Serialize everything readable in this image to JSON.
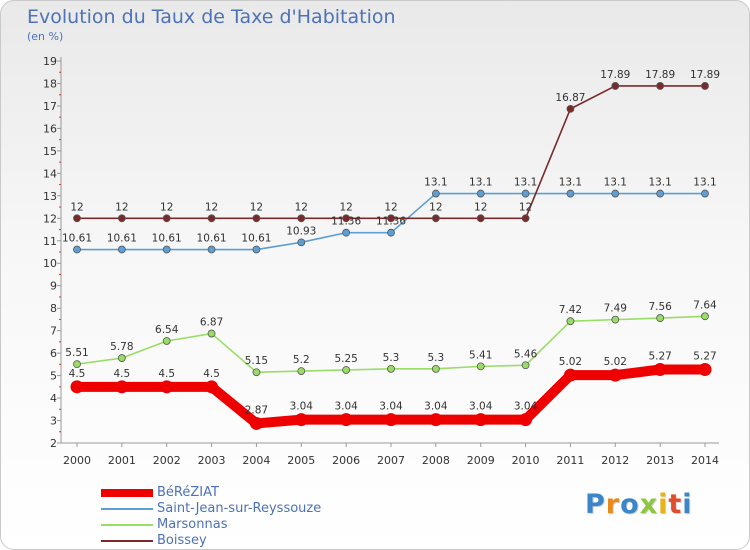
{
  "header": {
    "title": "Evolution du Taux de Taxe d'Habitation",
    "unit": "(en %)"
  },
  "logo": {
    "text": "Proxiti",
    "letter_colors": [
      "#3a86c8",
      "#e88a1a",
      "#3a86c8",
      "#8cc63f",
      "#e8b41a",
      "#e34b2a",
      "#3a86c8"
    ]
  },
  "chart_data": {
    "type": "line",
    "x": [
      2000,
      2001,
      2002,
      2003,
      2004,
      2005,
      2006,
      2007,
      2008,
      2009,
      2010,
      2011,
      2012,
      2013,
      2014
    ],
    "ylim": [
      2,
      19
    ],
    "yticks": [
      2,
      3,
      4,
      5,
      6,
      7,
      8,
      9,
      10,
      11,
      12,
      13,
      14,
      15,
      16,
      17,
      18,
      19
    ],
    "grid": false,
    "legend_position": "bottom-left",
    "series": [
      {
        "name": "BéRéZIAT",
        "color": "#ee0000",
        "values": [
          4.5,
          4.5,
          4.5,
          4.5,
          2.87,
          3.04,
          3.04,
          3.04,
          3.04,
          3.04,
          3.04,
          5.02,
          5.02,
          5.27,
          5.27
        ],
        "labels": [
          "4.5",
          "4.5",
          "4.5",
          "4.5",
          "2.87",
          "3.04",
          "3.04",
          "3.04",
          "3.04",
          "3.04",
          "3.04",
          "5.02",
          "5.02",
          "5.27",
          "5.27"
        ]
      },
      {
        "name": "Saint-Jean-sur-Reyssouze",
        "color": "#5d9fd4",
        "values": [
          10.61,
          10.61,
          10.61,
          10.61,
          10.61,
          10.93,
          11.36,
          11.36,
          13.1,
          13.1,
          13.1,
          13.1,
          13.1,
          13.1,
          13.1
        ],
        "labels": [
          "10.61",
          "10.61",
          "10.61",
          "10.61",
          "10.61",
          "10.93",
          "11.36",
          "11.36",
          "13.1",
          "13.1",
          "13.1",
          "13.1",
          "13.1",
          "13.1",
          "13.1"
        ]
      },
      {
        "name": "Marsonnas",
        "color": "#99dd66",
        "values": [
          5.51,
          5.78,
          6.54,
          6.87,
          5.15,
          5.2,
          5.25,
          5.3,
          5.3,
          5.41,
          5.46,
          7.42,
          7.49,
          7.56,
          7.64
        ],
        "labels": [
          "5.51",
          "5.78",
          "6.54",
          "6.87",
          "5.15",
          "5.2",
          "5.25",
          "5.3",
          "5.3",
          "5.41",
          "5.46",
          "7.42",
          "7.49",
          "7.56",
          "7.64"
        ]
      },
      {
        "name": "Boissey",
        "color": "#7a2a2a",
        "values": [
          12,
          12,
          12,
          12,
          12,
          12,
          12,
          12,
          12,
          12,
          12,
          16.87,
          17.89,
          17.89,
          17.89
        ],
        "labels": [
          "12",
          "12",
          "12",
          "12",
          "12",
          "12",
          "12",
          "12",
          "12",
          "12",
          "12",
          "16.87",
          "17.89",
          "17.89",
          "17.89"
        ]
      }
    ]
  }
}
